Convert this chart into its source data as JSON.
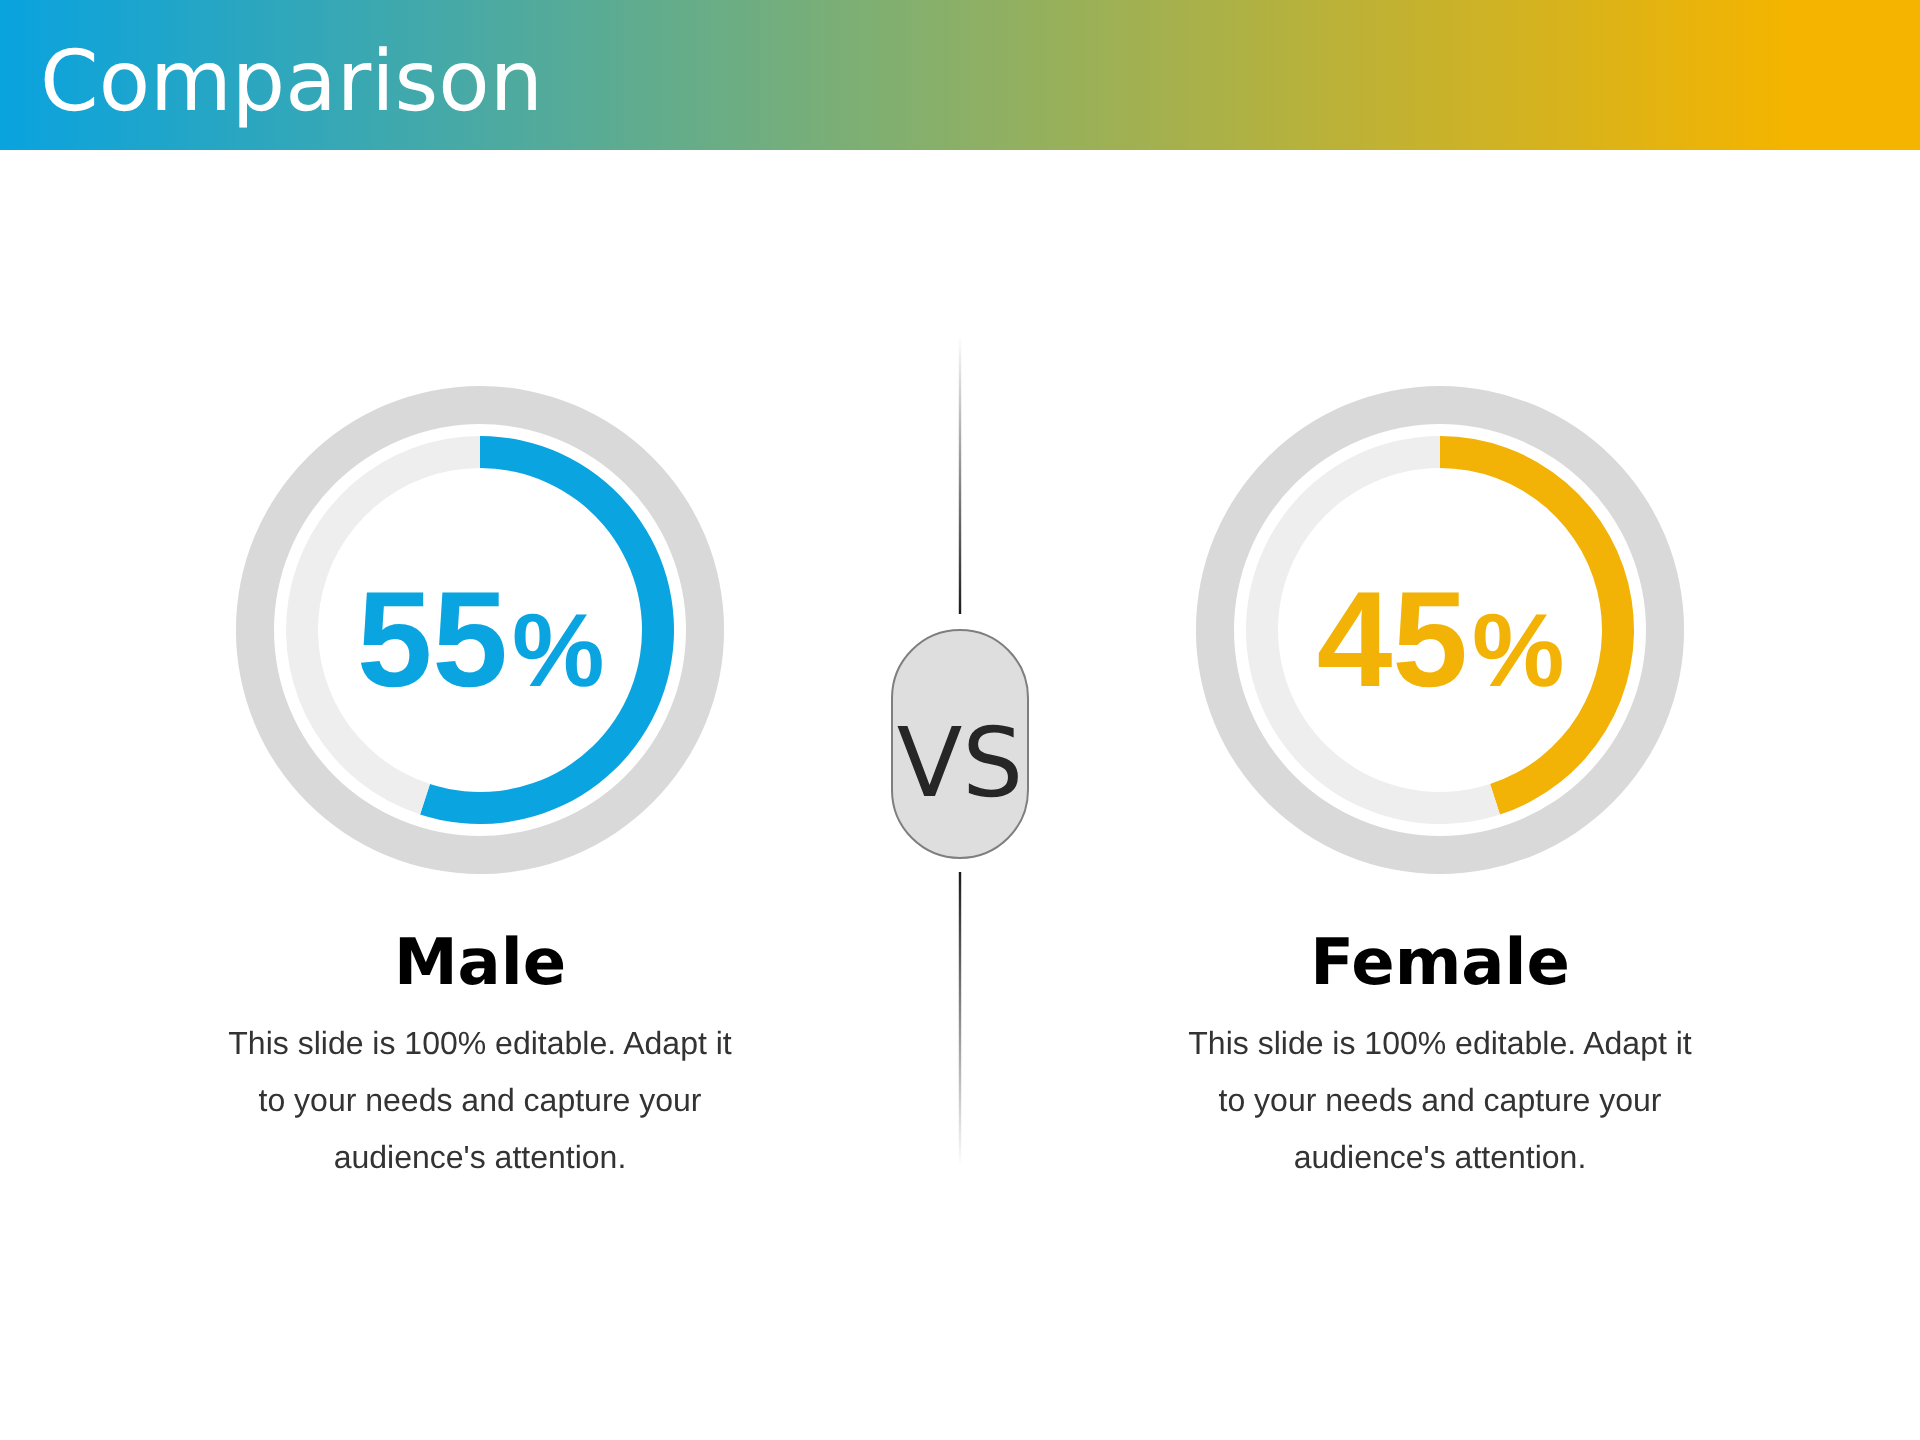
{
  "chart_data": [
    {
      "type": "other",
      "title": "Comparison"
    },
    {
      "type": "donut",
      "title": "Male",
      "categories": [
        null,
        null
      ],
      "values": [
        55,
        45
      ],
      "colors": [
        "#0aa5e0",
        "#eeeeee"
      ],
      "value_labels": [
        "55%",
        null
      ],
      "annotations": [
        "This slide is 100% editable. Adapt it to your needs and capture your audience's attention."
      ]
    },
    {
      "type": "other",
      "annotations": [
        "VS"
      ]
    },
    {
      "type": "donut",
      "title": "Female",
      "categories": [
        null,
        null
      ],
      "values": [
        45,
        55
      ],
      "colors": [
        "#f2b206",
        "#eeeeee"
      ],
      "value_labels": [
        "45%",
        null
      ],
      "annotations": [
        "This slide is 100% editable. Adapt it to your needs and capture your audience's attention."
      ]
    }
  ]
}
